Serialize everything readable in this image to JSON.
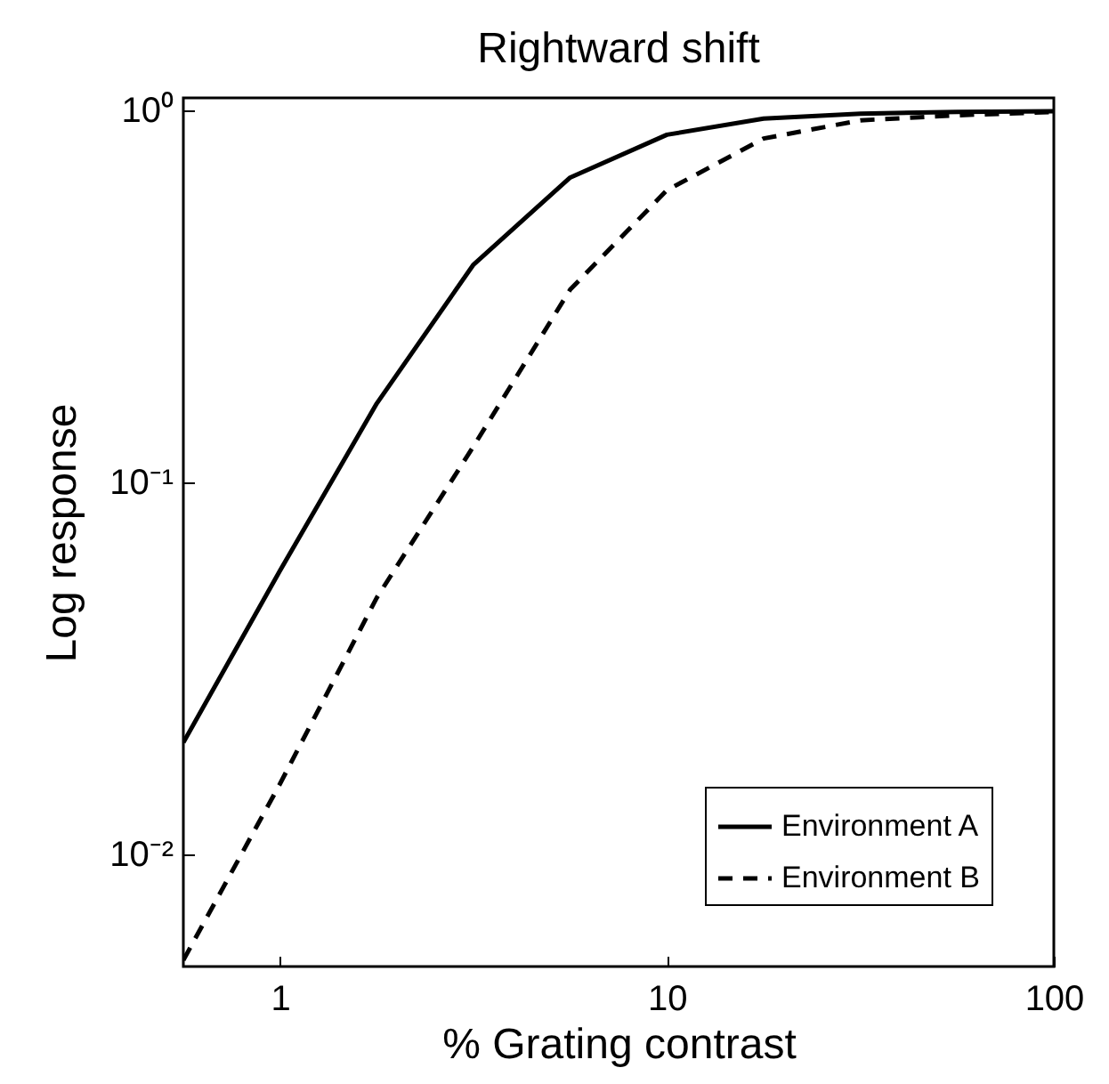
{
  "chart_data": {
    "type": "line",
    "title": "Rightward shift",
    "xlabel": "% Grating contrast",
    "ylabel": "Log response",
    "x": [
      0.5623,
      1,
      1.778,
      3.162,
      5.623,
      10,
      17.78,
      31.62,
      56.23,
      100
    ],
    "series": [
      {
        "name": "Environment A",
        "color": "#000000",
        "line_style": "solid",
        "values": [
          0.02,
          0.058,
          0.163,
          0.385,
          0.66,
          0.86,
          0.95,
          0.98,
          0.99,
          0.995
        ]
      },
      {
        "name": "Environment B",
        "color": "#000000",
        "line_style": "dashed",
        "values": [
          0.0052,
          0.0155,
          0.049,
          0.125,
          0.33,
          0.61,
          0.84,
          0.94,
          0.97,
          0.99
        ]
      }
    ],
    "log": "xy",
    "xlim": [
      0.5623,
      100
    ],
    "ylim": [
      0.005,
      1.08
    ],
    "xticks": [
      1,
      10,
      100
    ],
    "yticks": [
      {
        "value": 0.01,
        "label": "10⁻²"
      },
      {
        "value": 0.1,
        "label": "10⁻¹"
      },
      {
        "value": 1,
        "label": "10⁰"
      }
    ],
    "grid": false,
    "legend": "bottom right"
  }
}
